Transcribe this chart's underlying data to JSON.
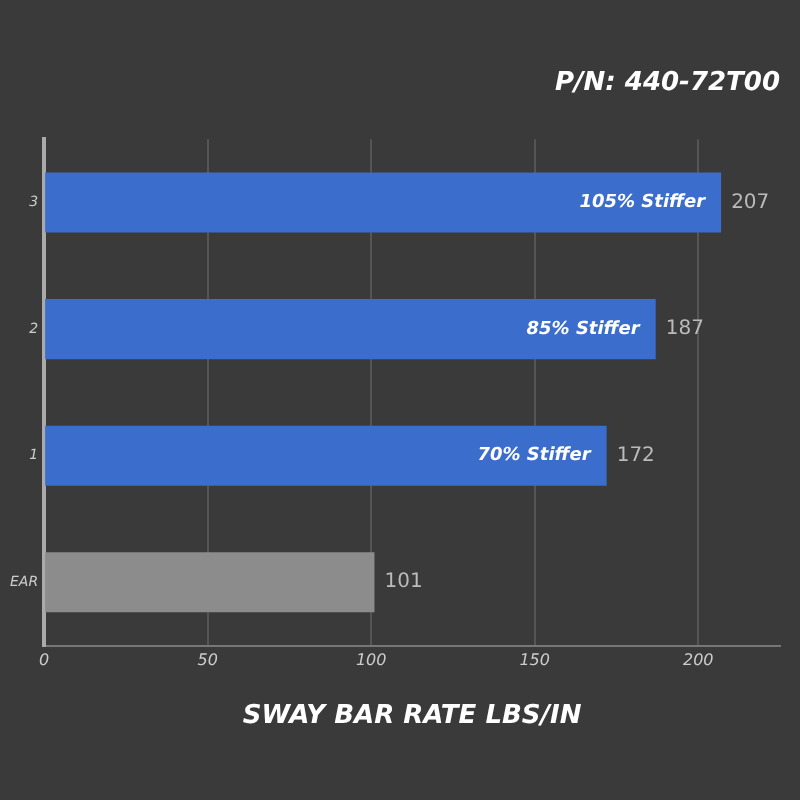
{
  "chart_data": {
    "type": "bar",
    "orientation": "horizontal",
    "title": "P/N: 440-72T00",
    "xlabel": "SWAY BAR RATE LBS/IN",
    "categories": [
      "3",
      "2",
      "1",
      "EAR"
    ],
    "values": [
      207,
      187,
      172,
      101
    ],
    "colors": [
      "#3b6dcc",
      "#3b6dcc",
      "#3b6dcc",
      "#8c8c8c"
    ],
    "xlim": [
      0,
      225
    ],
    "xticks": [
      0,
      50,
      100,
      150,
      200
    ],
    "grid": "x",
    "data_labels": true,
    "annotations": [
      {
        "text": "105% Stiffer",
        "x": 207,
        "y": "3"
      },
      {
        "text": "85% Stiffer",
        "x": 187,
        "y": "2"
      },
      {
        "text": "70% Stiffer",
        "x": 172,
        "y": "1"
      }
    ]
  }
}
